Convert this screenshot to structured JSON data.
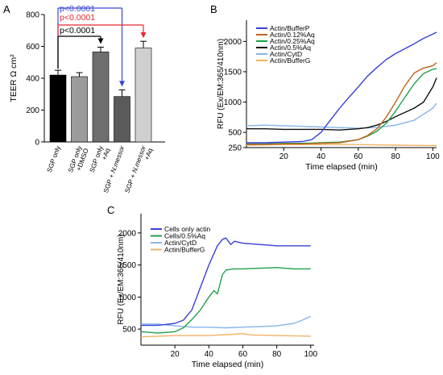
{
  "chart_data": [
    {
      "panel": "A",
      "type": "bar",
      "ylabel": "TEER Ω cm²",
      "ylim": [
        0,
        800
      ],
      "yticks": [
        0,
        200,
        400,
        600,
        800
      ],
      "categories": [
        "SGP only",
        "SGP only\n+DMSO",
        "SGP only\n+Aq",
        "SGP + N.messor",
        "SGP + N.messor\n+Aq"
      ],
      "values": [
        420,
        410,
        565,
        285,
        590
      ],
      "errors": [
        30,
        25,
        30,
        42,
        42
      ],
      "colors": [
        "#000000",
        "#9b9b9b",
        "#6e6e6e",
        "#5a5a5a",
        "#cfcfcf"
      ],
      "comparisons": [
        {
          "label": "p<0.0001",
          "from": 0,
          "to": 3,
          "color": "#3a47d8"
        },
        {
          "label": "p<0.0001",
          "from": 0,
          "to": 4,
          "color": "#e8262b"
        },
        {
          "label": "p<0.0001",
          "from": 0,
          "to": 2,
          "color": "#000000"
        }
      ]
    },
    {
      "panel": "B",
      "type": "line",
      "xlabel": "Time elapsed (min)",
      "ylabel": "RFU (Ex/EM:365/410nm)",
      "xlim": [
        0,
        102
      ],
      "ylim": [
        250,
        2350
      ],
      "xticks": [
        20,
        40,
        60,
        80,
        100
      ],
      "yticks": [
        250,
        500,
        1000,
        1500,
        2000
      ],
      "series": [
        {
          "name": "Actin/BufferP",
          "color": "#3a3fd8",
          "x": [
            0,
            10,
            20,
            30,
            35,
            40,
            45,
            50,
            55,
            60,
            65,
            70,
            75,
            80,
            85,
            90,
            95,
            100,
            102
          ],
          "values": [
            330,
            330,
            340,
            350,
            380,
            500,
            700,
            900,
            1080,
            1250,
            1430,
            1570,
            1700,
            1800,
            1880,
            1960,
            2050,
            2120,
            2150
          ]
        },
        {
          "name": "Actin/0.12%Aq",
          "color": "#c0631c",
          "x": [
            0,
            10,
            20,
            30,
            40,
            50,
            60,
            65,
            70,
            75,
            80,
            85,
            90,
            95,
            100,
            102
          ],
          "values": [
            300,
            300,
            310,
            310,
            320,
            330,
            380,
            450,
            560,
            750,
            1000,
            1270,
            1480,
            1560,
            1600,
            1650
          ]
        },
        {
          "name": "Actin/0.25%Aq",
          "color": "#1fa04a",
          "x": [
            0,
            10,
            20,
            30,
            40,
            50,
            60,
            65,
            70,
            75,
            80,
            85,
            90,
            95,
            100,
            102
          ],
          "values": [
            310,
            310,
            320,
            320,
            330,
            340,
            380,
            440,
            520,
            650,
            850,
            1080,
            1300,
            1470,
            1540,
            1550
          ]
        },
        {
          "name": "Actin/0.5%Aq",
          "color": "#111111",
          "x": [
            0,
            10,
            20,
            30,
            40,
            50,
            60,
            65,
            70,
            75,
            80,
            85,
            90,
            95,
            100,
            102
          ],
          "values": [
            560,
            560,
            550,
            550,
            550,
            540,
            560,
            580,
            620,
            680,
            760,
            830,
            900,
            1000,
            1250,
            1400
          ]
        },
        {
          "name": "Actin/CytD",
          "color": "#86b6ec",
          "x": [
            0,
            10,
            20,
            30,
            40,
            50,
            60,
            70,
            80,
            90,
            100,
            102
          ],
          "values": [
            610,
            620,
            610,
            600,
            590,
            580,
            570,
            580,
            620,
            700,
            900,
            980
          ]
        },
        {
          "name": "Actin/BufferG",
          "color": "#f3b267",
          "x": [
            0,
            20,
            40,
            60,
            80,
            100,
            102
          ],
          "values": [
            290,
            300,
            300,
            300,
            290,
            285,
            285
          ]
        }
      ]
    },
    {
      "panel": "C",
      "type": "line",
      "xlabel": "Time elapsed (min)",
      "ylabel": "RFU (Ex/EM:365/410nm)",
      "xlim": [
        0,
        102
      ],
      "ylim": [
        250,
        2300
      ],
      "xticks": [
        20,
        40,
        60,
        80,
        100
      ],
      "yticks": [
        500,
        1000,
        1500,
        2000
      ],
      "series": [
        {
          "name": "Cells only actin",
          "color": "#3a3fd8",
          "x": [
            0,
            10,
            20,
            25,
            30,
            35,
            40,
            45,
            48,
            50,
            53,
            55,
            60,
            70,
            80,
            90,
            100
          ],
          "values": [
            560,
            560,
            590,
            640,
            800,
            1150,
            1500,
            1800,
            1900,
            1920,
            1820,
            1870,
            1840,
            1820,
            1800,
            1800,
            1800
          ]
        },
        {
          "name": "Cells/0.5%Aq",
          "color": "#1fa04a",
          "x": [
            0,
            10,
            20,
            25,
            30,
            35,
            40,
            43,
            45,
            48,
            50,
            52,
            55,
            60,
            70,
            80,
            90,
            100
          ],
          "values": [
            460,
            440,
            460,
            520,
            650,
            800,
            1000,
            1100,
            1050,
            1350,
            1420,
            1430,
            1440,
            1440,
            1450,
            1460,
            1440,
            1440
          ]
        },
        {
          "name": "Actin/CytD",
          "color": "#86b6ec",
          "x": [
            0,
            10,
            20,
            30,
            40,
            50,
            60,
            70,
            80,
            90,
            95,
            100
          ],
          "values": [
            580,
            580,
            550,
            530,
            530,
            520,
            530,
            540,
            550,
            590,
            640,
            700
          ]
        },
        {
          "name": "Actin/BufferG",
          "color": "#f3b267",
          "x": [
            0,
            20,
            40,
            55,
            60,
            65,
            80,
            100
          ],
          "values": [
            380,
            400,
            400,
            420,
            430,
            410,
            400,
            390
          ]
        }
      ]
    }
  ]
}
